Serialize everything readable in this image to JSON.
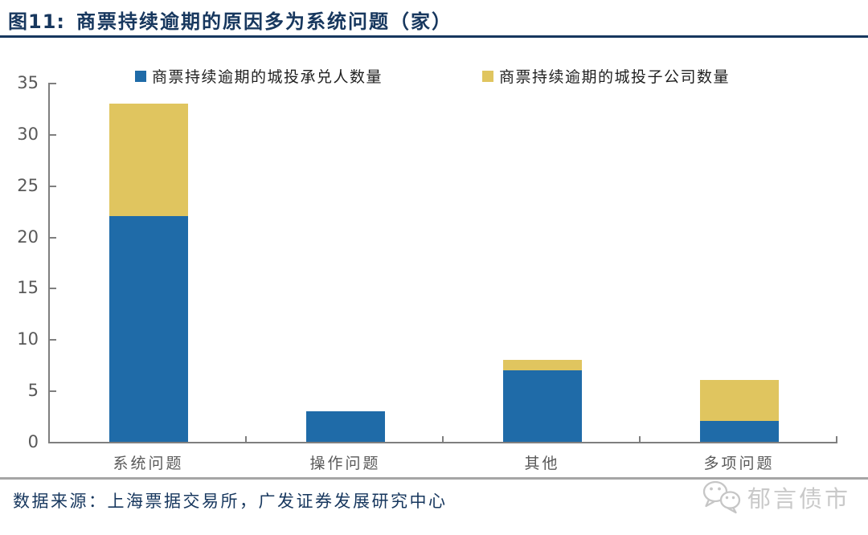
{
  "figure": {
    "label": "图11:",
    "title": "商票持续逾期的原因多为系统问题（家）"
  },
  "source": "数据来源：上海票据交易所，广发证券发展研究中心",
  "watermark": "郁言债市",
  "colors": {
    "series_blue": "#1F6BA8",
    "series_yellow": "#E0C55F",
    "title_navy": "#17375E",
    "axis_gray": "#7F7F7F",
    "label_gray": "#595959"
  },
  "chart_data": {
    "type": "bar",
    "stacked": true,
    "categories": [
      "系统问题",
      "操作问题",
      "其他",
      "多项问题"
    ],
    "series": [
      {
        "name": "商票持续逾期的城投承兑人数量",
        "color": "#1F6BA8",
        "values": [
          22,
          3,
          7,
          2
        ]
      },
      {
        "name": "商票持续逾期的城投子公司数量",
        "color": "#E0C55F",
        "values": [
          11,
          0,
          1,
          4
        ]
      }
    ],
    "totals": [
      33,
      3,
      8,
      6
    ],
    "ylim": [
      0,
      35
    ],
    "yticks": [
      0,
      5,
      10,
      15,
      20,
      25,
      30,
      35
    ],
    "grid": false,
    "legend_position": "top",
    "tick_direction": "inside"
  }
}
